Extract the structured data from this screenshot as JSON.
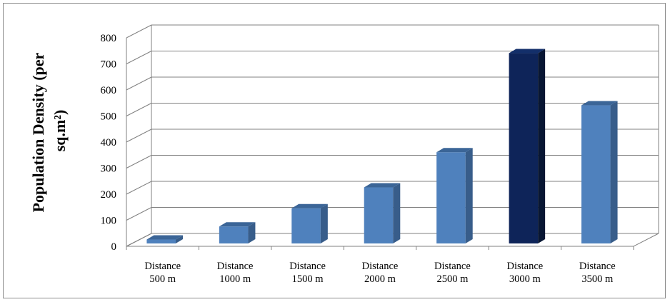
{
  "chart_data": {
    "type": "bar",
    "categories": [
      [
        "Distance",
        "500 m"
      ],
      [
        "Distance",
        "1000 m"
      ],
      [
        "Distance",
        "1500 m"
      ],
      [
        "Distance",
        "2000 m"
      ],
      [
        "Distance",
        "2500 m"
      ],
      [
        "Distance",
        "3000 m"
      ],
      [
        "Distance",
        "3500 m"
      ]
    ],
    "values": [
      15,
      65,
      135,
      215,
      350,
      730,
      530
    ],
    "highlight_index": 5,
    "ylabel": [
      "Population Density (per",
      "sq.m²)"
    ],
    "ylim": [
      0,
      800
    ],
    "yticks": [
      "0",
      "100",
      "200",
      "300",
      "400",
      "500",
      "600",
      "700",
      "800"
    ],
    "grid": true,
    "colors": {
      "bar_front": "#4f81bd",
      "bar_side": "#385d8a",
      "bar_top": "#3b6597",
      "highlight_front": "#0e2459",
      "highlight_side": "#081633",
      "highlight_top": "#132f6a",
      "grid": "#808080"
    }
  }
}
